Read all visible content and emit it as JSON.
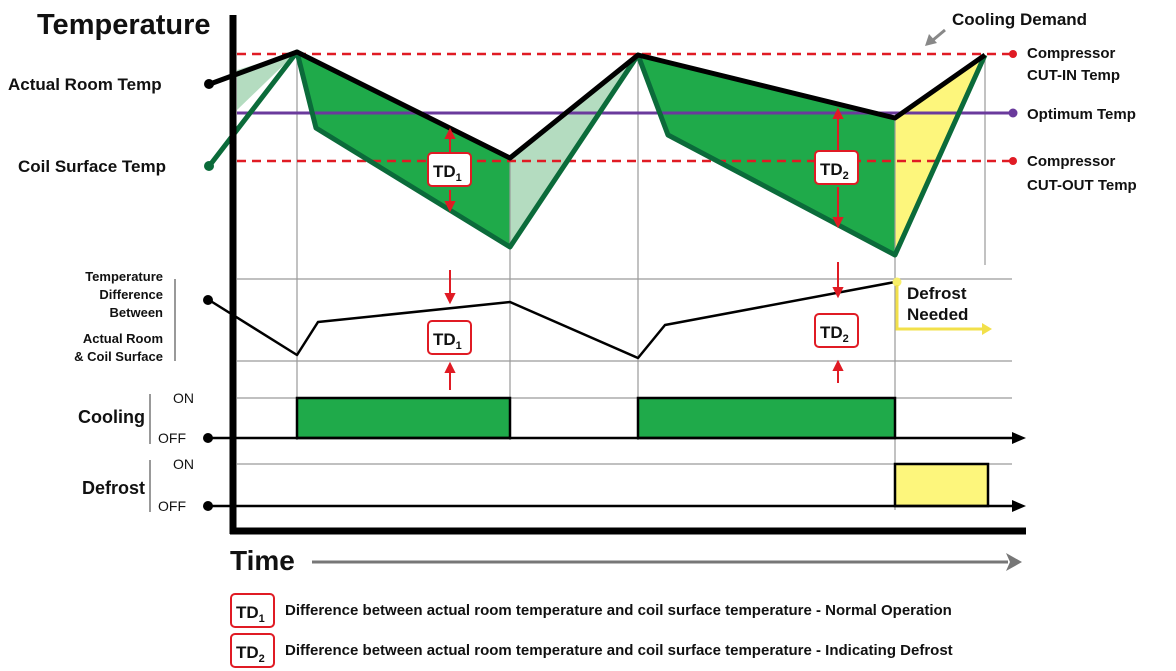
{
  "axes": {
    "y_title": "Temperature",
    "x_title": "Time"
  },
  "left_labels": {
    "actual_room_temp": "Actual Room Temp",
    "coil_surface_temp": "Coil Surface Temp",
    "td_graph_line1": "Temperature",
    "td_graph_line2": "Difference",
    "td_graph_line3": "Between",
    "td_graph_line4": "Actual Room",
    "td_graph_line5": "& Coil Surface",
    "cooling": "Cooling",
    "defrost": "Defrost",
    "on": "ON",
    "off": "OFF"
  },
  "right_labels": {
    "cooling_demand": "Cooling Demand",
    "cut_in_line1": "Compressor",
    "cut_in_line2": "CUT-IN Temp",
    "optimum": "Optimum Temp",
    "cut_out_line1": "Compressor",
    "cut_out_line2": "CUT-OUT Temp"
  },
  "markers": {
    "td_base": "TD",
    "td1_sub": "1",
    "td2_sub": "2",
    "defrost_needed_line1": "Defrost",
    "defrost_needed_line2": "Needed"
  },
  "legend": {
    "td_base": "TD",
    "td1_sub": "1",
    "td2_sub": "2",
    "td1_text": "Difference between actual room temperature and coil surface temperature - Normal Operation",
    "td2_text": "Difference between actual room temperature and coil surface temperature - Indicating Defrost"
  },
  "colors": {
    "room_line": "#000000",
    "coil_line": "#0b6b3a",
    "cooling_fill": "#1faa4a",
    "offcycle_fill": "#b4dcc0",
    "defrost_fill": "#fdf67c",
    "cut_line": "#e01b24",
    "optimum_line": "#6a3a9c",
    "arrow_gray": "#888888",
    "defrost_arrow": "#f2e04a"
  }
}
